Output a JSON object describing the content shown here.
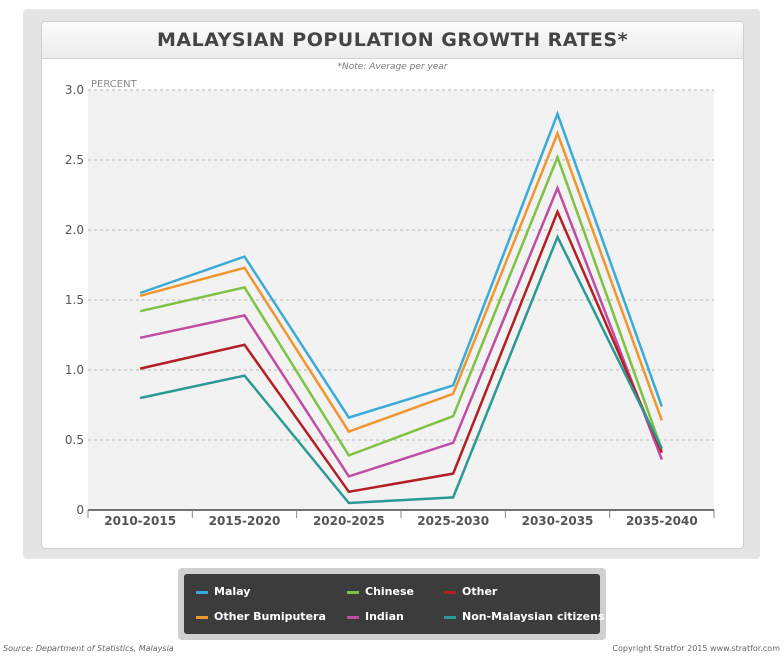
{
  "title": "MALAYSIAN POPULATION GROWTH RATES*",
  "subtitle": "*Note: Average per year",
  "source": "Source: Department of Statistics, Malaysia",
  "copyright": "Copyright Stratfor 2015   www.stratfor.com",
  "chart_data": {
    "type": "line",
    "ylabel": "PERCENT",
    "xlabel": "",
    "ylim": [
      0,
      3.0
    ],
    "yticks": [
      "0",
      "0.5",
      "1.0",
      "1.5",
      "2.0",
      "2.5",
      "3.0"
    ],
    "grid": true,
    "legend_position": "bottom",
    "categories": [
      "2010-2015",
      "2015-2020",
      "2020-2025",
      "2025-2030",
      "2030-2035",
      "2035-2040"
    ],
    "series": [
      {
        "name": "Malay",
        "color": "#3aaad6",
        "values": [
          1.55,
          1.81,
          0.66,
          0.89,
          2.83,
          0.74
        ]
      },
      {
        "name": "Other Bumiputera",
        "color": "#f0962f",
        "values": [
          1.53,
          1.73,
          0.56,
          0.83,
          2.69,
          0.64
        ]
      },
      {
        "name": "Chinese",
        "color": "#7dc242",
        "values": [
          1.42,
          1.59,
          0.39,
          0.67,
          2.52,
          0.43
        ]
      },
      {
        "name": "Indian",
        "color": "#c04ca3",
        "values": [
          1.23,
          1.39,
          0.24,
          0.48,
          2.3,
          0.36
        ]
      },
      {
        "name": "Other",
        "color": "#b31f24",
        "values": [
          1.01,
          1.18,
          0.13,
          0.26,
          2.13,
          0.41
        ]
      },
      {
        "name": "Non-Malaysian citizens",
        "color": "#2b9a94",
        "values": [
          0.8,
          0.96,
          0.05,
          0.09,
          1.95,
          0.44
        ]
      }
    ]
  }
}
